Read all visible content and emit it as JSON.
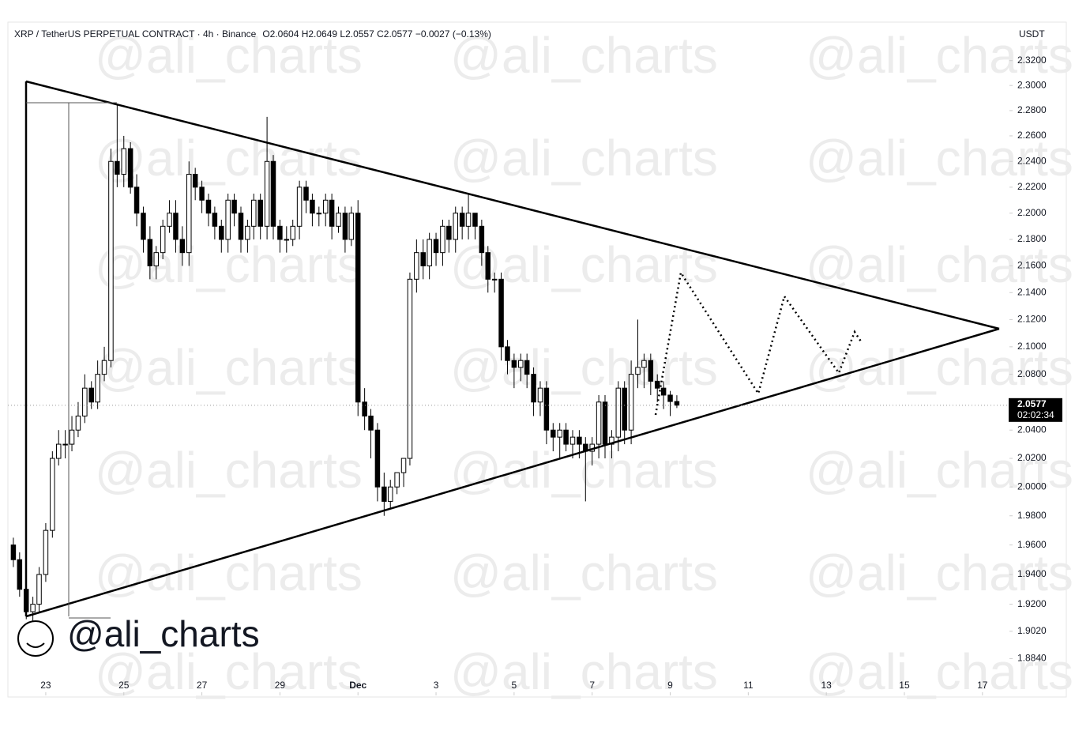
{
  "chart_data": {
    "type": "candlestick",
    "title": "XRP / TetherUS PERPETUAL CONTRACT · 4h · Binance",
    "subtitle": "O2.0604  H2.0649  L2.0557  C2.0577  −0.0027 (−0.13%)",
    "y_label": "USDT",
    "watermark": "@ali_charts",
    "log_scale": true,
    "up_color": "#ffffff",
    "down_color": "#000000",
    "x": [
      -0.83,
      -0.67,
      -0.5,
      -0.33,
      -0.17,
      0,
      0.17,
      0.33,
      0.5,
      0.67,
      0.83,
      1,
      1.17,
      1.33,
      1.5,
      1.67,
      1.83,
      2,
      2.17,
      2.33,
      2.5,
      2.67,
      2.83,
      3,
      3.17,
      3.33,
      3.5,
      3.67,
      3.83,
      4,
      4.17,
      4.33,
      4.5,
      4.67,
      4.83,
      5,
      5.17,
      5.33,
      5.5,
      5.67,
      5.83,
      6,
      6.17,
      6.33,
      6.5,
      6.67,
      6.83,
      7,
      7.17,
      7.33,
      7.5,
      7.67,
      7.83,
      8,
      8.17,
      8.33,
      8.5,
      8.67,
      8.83,
      9,
      9.17,
      9.33,
      9.5,
      9.67,
      9.83,
      10,
      10.17,
      10.33,
      10.5,
      10.67,
      10.83,
      11,
      11.17,
      11.33,
      11.5,
      11.67,
      11.83,
      12,
      12.17,
      12.33,
      12.5,
      12.67,
      12.83,
      13,
      13.17,
      13.33,
      13.5,
      13.67,
      13.83,
      14,
      14.17,
      14.33,
      14.5,
      14.67,
      14.83,
      15,
      15.17,
      15.33,
      15.5,
      15.67,
      15.83,
      16,
      16.17
    ],
    "open": [
      1.96,
      1.95,
      1.93,
      1.915,
      1.92,
      1.94,
      1.97,
      2.02,
      2.03,
      2.03,
      2.04,
      2.05,
      2.07,
      2.06,
      2.08,
      2.09,
      2.24,
      2.23,
      2.25,
      2.22,
      2.2,
      2.18,
      2.16,
      2.17,
      2.19,
      2.2,
      2.18,
      2.17,
      2.23,
      2.22,
      2.21,
      2.2,
      2.19,
      2.18,
      2.21,
      2.2,
      2.18,
      2.19,
      2.21,
      2.19,
      2.24,
      2.19,
      2.18,
      2.18,
      2.19,
      2.22,
      2.21,
      2.2,
      2.2,
      2.21,
      2.19,
      2.2,
      2.18,
      2.2,
      2.06,
      2.05,
      2.04,
      2.0,
      1.99,
      2.0,
      2.01,
      2.02,
      2.15,
      2.17,
      2.16,
      2.18,
      2.17,
      2.19,
      2.18,
      2.2,
      2.19,
      2.2,
      2.19,
      2.17,
      2.15,
      2.15,
      2.1,
      2.09,
      2.085,
      2.09,
      2.08,
      2.06,
      2.07,
      2.04,
      2.035,
      2.04,
      2.03,
      2.035,
      2.03,
      2.025,
      2.03,
      2.06,
      2.03,
      2.035,
      2.07,
      2.04,
      2.08,
      2.085,
      2.09,
      2.075,
      2.07,
      2.065,
      2.0604
    ],
    "high": [
      1.965,
      1.955,
      1.935,
      1.925,
      1.945,
      1.975,
      2.025,
      2.04,
      2.04,
      2.05,
      2.06,
      2.08,
      2.075,
      2.09,
      2.1,
      2.25,
      2.285,
      2.26,
      2.255,
      2.23,
      2.205,
      2.19,
      2.175,
      2.195,
      2.21,
      2.21,
      2.19,
      2.24,
      2.235,
      2.225,
      2.215,
      2.205,
      2.195,
      2.215,
      2.215,
      2.205,
      2.195,
      2.215,
      2.215,
      2.275,
      2.245,
      2.195,
      2.19,
      2.195,
      2.225,
      2.225,
      2.215,
      2.205,
      2.215,
      2.215,
      2.205,
      2.205,
      2.205,
      2.21,
      2.07,
      2.055,
      2.045,
      2.01,
      2.005,
      2.01,
      2.02,
      2.155,
      2.18,
      2.18,
      2.185,
      2.185,
      2.195,
      2.195,
      2.205,
      2.205,
      2.215,
      2.2,
      2.195,
      2.175,
      2.155,
      2.155,
      2.105,
      2.095,
      2.095,
      2.095,
      2.085,
      2.075,
      2.075,
      2.045,
      2.045,
      2.045,
      2.04,
      2.04,
      2.035,
      2.035,
      2.065,
      2.065,
      2.04,
      2.075,
      2.075,
      2.09,
      2.12,
      2.095,
      2.095,
      2.08,
      2.075,
      2.068,
      2.0649
    ],
    "low": [
      1.945,
      1.925,
      1.91,
      1.905,
      1.915,
      1.935,
      1.965,
      2.015,
      2.02,
      2.025,
      2.035,
      2.045,
      2.055,
      2.055,
      2.075,
      2.085,
      2.22,
      2.22,
      2.215,
      2.19,
      2.17,
      2.15,
      2.15,
      2.165,
      2.185,
      2.17,
      2.16,
      2.16,
      2.21,
      2.2,
      2.19,
      2.18,
      2.17,
      2.17,
      2.19,
      2.17,
      2.17,
      2.18,
      2.18,
      2.18,
      2.18,
      2.17,
      2.17,
      2.175,
      2.18,
      2.2,
      2.19,
      2.19,
      2.19,
      2.18,
      2.185,
      2.17,
      2.175,
      2.05,
      2.04,
      2.02,
      1.99,
      1.98,
      1.985,
      1.995,
      2.0,
      2.015,
      2.14,
      2.15,
      2.15,
      2.16,
      2.16,
      2.17,
      2.17,
      2.18,
      2.18,
      2.18,
      2.16,
      2.14,
      2.14,
      2.09,
      2.08,
      2.07,
      2.075,
      2.07,
      2.05,
      2.05,
      2.03,
      2.025,
      2.02,
      2.025,
      2.02,
      2.02,
      1.99,
      2.015,
      2.02,
      2.02,
      2.02,
      2.025,
      2.03,
      2.03,
      2.07,
      2.07,
      2.065,
      2.06,
      2.055,
      2.05,
      2.0557
    ],
    "close": [
      1.95,
      1.93,
      1.915,
      1.92,
      1.94,
      1.97,
      2.02,
      2.03,
      2.03,
      2.04,
      2.05,
      2.07,
      2.06,
      2.08,
      2.09,
      2.24,
      2.23,
      2.25,
      2.22,
      2.2,
      2.18,
      2.16,
      2.17,
      2.19,
      2.2,
      2.18,
      2.17,
      2.23,
      2.22,
      2.21,
      2.2,
      2.19,
      2.18,
      2.21,
      2.2,
      2.18,
      2.19,
      2.21,
      2.19,
      2.24,
      2.19,
      2.18,
      2.18,
      2.19,
      2.22,
      2.21,
      2.2,
      2.2,
      2.21,
      2.19,
      2.2,
      2.18,
      2.2,
      2.06,
      2.05,
      2.04,
      2.0,
      1.99,
      2.0,
      2.01,
      2.02,
      2.15,
      2.17,
      2.16,
      2.18,
      2.17,
      2.19,
      2.18,
      2.2,
      2.19,
      2.2,
      2.19,
      2.17,
      2.15,
      2.15,
      2.1,
      2.09,
      2.085,
      2.09,
      2.08,
      2.06,
      2.07,
      2.04,
      2.035,
      2.04,
      2.03,
      2.035,
      2.03,
      2.025,
      2.03,
      2.06,
      2.03,
      2.035,
      2.07,
      2.04,
      2.08,
      2.085,
      2.09,
      2.075,
      2.07,
      2.065,
      2.0604,
      2.0577
    ],
    "xlim": [
      -0.97,
      24.53
    ],
    "xticks": [
      {
        "value": 0,
        "label": "23"
      },
      {
        "value": 2,
        "label": "25"
      },
      {
        "value": 4,
        "label": "27"
      },
      {
        "value": 6,
        "label": "29"
      },
      {
        "value": 8,
        "label": "Dec"
      },
      {
        "value": 10,
        "label": "3"
      },
      {
        "value": 12,
        "label": "5"
      },
      {
        "value": 14,
        "label": "7"
      },
      {
        "value": 16,
        "label": "9"
      },
      {
        "value": 18,
        "label": "11"
      },
      {
        "value": 20,
        "label": "13"
      },
      {
        "value": 22,
        "label": "15"
      },
      {
        "value": 24,
        "label": "17"
      }
    ],
    "ylim": [
      1.86,
      2.35
    ],
    "yticks": [
      {
        "value": 2.32,
        "label": "2.3200"
      },
      {
        "value": 2.3,
        "label": "2.3000"
      },
      {
        "value": 2.28,
        "label": "2.2800"
      },
      {
        "value": 2.26,
        "label": "2.2600"
      },
      {
        "value": 2.24,
        "label": "2.2400"
      },
      {
        "value": 2.22,
        "label": "2.2200"
      },
      {
        "value": 2.2,
        "label": "2.2000"
      },
      {
        "value": 2.18,
        "label": "2.1800"
      },
      {
        "value": 2.16,
        "label": "2.1600"
      },
      {
        "value": 2.14,
        "label": "2.1400"
      },
      {
        "value": 2.12,
        "label": "2.1200"
      },
      {
        "value": 2.1,
        "label": "2.1000"
      },
      {
        "value": 2.08,
        "label": "2.0800"
      },
      {
        "value": 2.04,
        "label": "2.0400"
      },
      {
        "value": 2.02,
        "label": "2.0200"
      },
      {
        "value": 2.0,
        "label": "2.0000"
      },
      {
        "value": 1.98,
        "label": "1.9800"
      },
      {
        "value": 1.96,
        "label": "1.9600"
      },
      {
        "value": 1.94,
        "label": "1.9400"
      },
      {
        "value": 1.92,
        "label": "1.9200"
      },
      {
        "value": 1.902,
        "label": "1.9020"
      },
      {
        "value": 1.884,
        "label": "1.8840"
      }
    ],
    "last_price": {
      "value": 2.0577,
      "countdown": "02:02:34"
    }
  }
}
